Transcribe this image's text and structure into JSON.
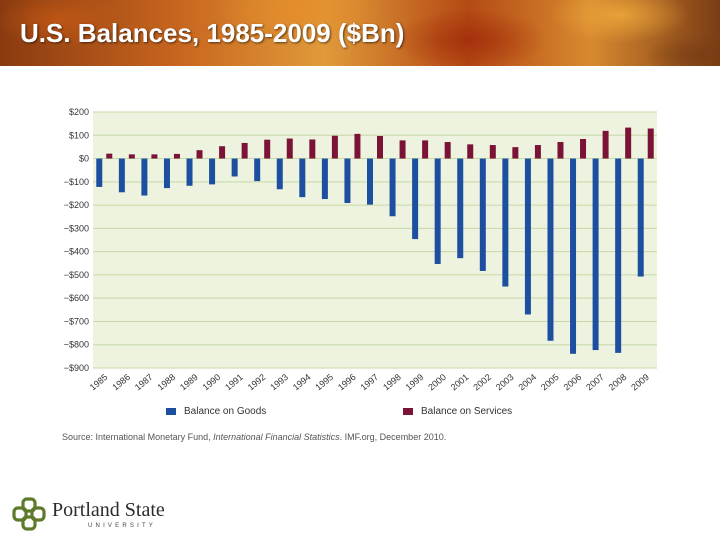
{
  "title": "U.S. Balances, 1985-2009 ($Bn)",
  "chart_data": {
    "type": "bar",
    "categories": [
      "1985",
      "1986",
      "1987",
      "1988",
      "1989",
      "1990",
      "1991",
      "1992",
      "1993",
      "1994",
      "1995",
      "1996",
      "1997",
      "1998",
      "1999",
      "2000",
      "2001",
      "2002",
      "2003",
      "2004",
      "2005",
      "2006",
      "2007",
      "2008",
      "2009"
    ],
    "series": [
      {
        "name": "Balance on Goods",
        "color": "#1c4fa0",
        "values": [
          -122,
          -145,
          -159,
          -127,
          -117,
          -111,
          -77,
          -97,
          -132,
          -166,
          -174,
          -191,
          -198,
          -248,
          -346,
          -453,
          -428,
          -483,
          -550,
          -670,
          -783,
          -839,
          -823,
          -835,
          -507
        ]
      },
      {
        "name": "Balance on Services",
        "color": "#7a1335",
        "values": [
          21,
          18,
          18,
          20,
          36,
          53,
          67,
          81,
          86,
          82,
          98,
          106,
          97,
          78,
          78,
          71,
          61,
          58,
          49,
          58,
          71,
          84,
          119,
          133,
          129
        ]
      }
    ],
    "ylim": [
      -900,
      200
    ],
    "yticks": [
      200,
      100,
      0,
      -100,
      -200,
      -300,
      -400,
      -500,
      -600,
      -700,
      -800,
      -900
    ],
    "ytick_labels": [
      "$200",
      "$100",
      "$0",
      "−$100",
      "−$200",
      "−$300",
      "−$400",
      "−$500",
      "−$600",
      "−$700",
      "−$800",
      "−$900"
    ],
    "grid": true,
    "plot_background": "#edf3de",
    "grid_color": "#c5d9a8",
    "legend_position": "bottom"
  },
  "source": {
    "prefix": "Source",
    "main": ": International Monetary Fund, ",
    "publication": "International Financial Statistics",
    "suffix": ". IMF.org, December 2010."
  },
  "logo": {
    "name": "Portland State",
    "sub": "UNIVERSITY",
    "mark_color": "#5f7a2a"
  }
}
